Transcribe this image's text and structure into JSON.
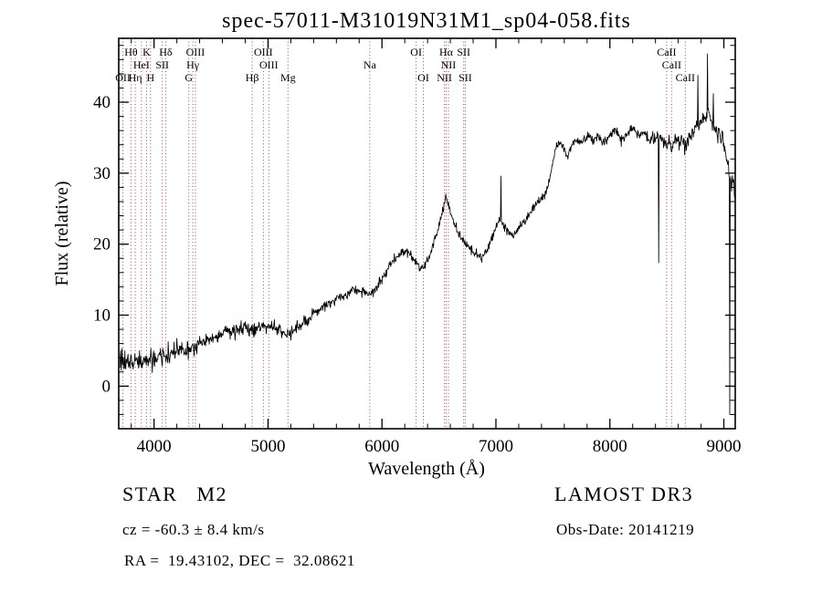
{
  "footer": {
    "left": {
      "class_line": "STAR   M2",
      "cz_line": "cz = -60.3 ± 8.4 km/s",
      "coord_line": "RA =  19.43102, DEC =  32.08621"
    },
    "right": {
      "survey_line": "LAMOST DR3",
      "obsdate_line": "Obs-Date: 20141219"
    }
  },
  "chart_data": {
    "type": "line",
    "title": "spec-57011-M31019N31M1_sp04-058.fits",
    "xlabel": "Wavelength (Å)",
    "ylabel": "Flux (relative)",
    "xlim": [
      3690,
      9100
    ],
    "ylim": [
      -6,
      49
    ],
    "xticks": [
      4000,
      5000,
      6000,
      7000,
      8000,
      9000
    ],
    "yticks": [
      0,
      10,
      20,
      30,
      40
    ],
    "x_minor_step": 200,
    "y_minor_step": 2,
    "line_color": "#000000",
    "marker_color": "#a8473a",
    "label_color": "#1c1c1c",
    "seed": 58,
    "spectral_lines": [
      {
        "label": "OII",
        "wavelength": 3727,
        "row": 3
      },
      {
        "label": "Hθ",
        "wavelength": 3798,
        "row": 1
      },
      {
        "label": "Hη",
        "wavelength": 3835,
        "row": 3
      },
      {
        "label": "HeI",
        "wavelength": 3889,
        "row": 2
      },
      {
        "label": "K",
        "wavelength": 3934,
        "row": 1
      },
      {
        "label": "H",
        "wavelength": 3969,
        "row": 3
      },
      {
        "label": "SII",
        "wavelength": 4072,
        "row": 2
      },
      {
        "label": "Hδ",
        "wavelength": 4102,
        "row": 1
      },
      {
        "label": "G",
        "wavelength": 4305,
        "row": 3
      },
      {
        "label": "Hγ",
        "wavelength": 4340,
        "row": 2
      },
      {
        "label": "OIII",
        "wavelength": 4363,
        "row": 1
      },
      {
        "label": "Hβ",
        "wavelength": 4861,
        "row": 3
      },
      {
        "label": "OIII",
        "wavelength": 4959,
        "row": 1
      },
      {
        "label": "OIII",
        "wavelength": 5007,
        "row": 2
      },
      {
        "label": "Mg",
        "wavelength": 5175,
        "row": 3
      },
      {
        "label": "Na",
        "wavelength": 5893,
        "row": 2
      },
      {
        "label": "OI",
        "wavelength": 6300,
        "row": 1
      },
      {
        "label": "OI",
        "wavelength": 6363,
        "row": 3
      },
      {
        "label": "NII",
        "wavelength": 6548,
        "row": 3
      },
      {
        "label": "Hα",
        "wavelength": 6563,
        "row": 1
      },
      {
        "label": "NII",
        "wavelength": 6583,
        "row": 2
      },
      {
        "label": "SII",
        "wavelength": 6717,
        "row": 1
      },
      {
        "label": "SII",
        "wavelength": 6731,
        "row": 3
      },
      {
        "label": "CaII",
        "wavelength": 8498,
        "row": 1
      },
      {
        "label": "CaII",
        "wavelength": 8542,
        "row": 2
      },
      {
        "label": "CaII",
        "wavelength": 8662,
        "row": 3
      }
    ],
    "series": [
      {
        "name": "spectrum",
        "anchors": [
          [
            3700,
            2.8
          ],
          [
            3715,
            4.2
          ],
          [
            3730,
            3.0
          ],
          [
            3750,
            3.8
          ],
          [
            3775,
            3.2
          ],
          [
            3800,
            3.4
          ],
          [
            3830,
            3.1
          ],
          [
            3860,
            3.6
          ],
          [
            3890,
            3.2
          ],
          [
            3920,
            3.4
          ],
          [
            3950,
            3.6
          ],
          [
            3980,
            3.9
          ],
          [
            4010,
            3.8
          ],
          [
            4040,
            4.3
          ],
          [
            4070,
            4.1
          ],
          [
            4100,
            4.2
          ],
          [
            4130,
            4.5
          ],
          [
            4160,
            4.7
          ],
          [
            4200,
            4.9
          ],
          [
            4250,
            5.1
          ],
          [
            4300,
            5.0
          ],
          [
            4340,
            5.5
          ],
          [
            4380,
            5.9
          ],
          [
            4430,
            6.3
          ],
          [
            4480,
            6.6
          ],
          [
            4530,
            6.9
          ],
          [
            4580,
            7.1
          ],
          [
            4640,
            7.5
          ],
          [
            4700,
            7.8
          ],
          [
            4760,
            8.1
          ],
          [
            4820,
            8.3
          ],
          [
            4861,
            8.0
          ],
          [
            4900,
            8.4
          ],
          [
            4950,
            8.7
          ],
          [
            5000,
            8.5
          ],
          [
            5050,
            8.2
          ],
          [
            5100,
            7.8
          ],
          [
            5140,
            7.5
          ],
          [
            5180,
            7.2
          ],
          [
            5220,
            7.6
          ],
          [
            5260,
            8.2
          ],
          [
            5300,
            8.8
          ],
          [
            5350,
            9.3
          ],
          [
            5400,
            10.1
          ],
          [
            5450,
            10.7
          ],
          [
            5500,
            11.2
          ],
          [
            5550,
            11.8
          ],
          [
            5600,
            12.3
          ],
          [
            5650,
            12.7
          ],
          [
            5700,
            13.1
          ],
          [
            5750,
            13.4
          ],
          [
            5800,
            13.5
          ],
          [
            5850,
            13.3
          ],
          [
            5890,
            12.6
          ],
          [
            5920,
            13.2
          ],
          [
            5960,
            14.1
          ],
          [
            6000,
            15.2
          ],
          [
            6050,
            16.5
          ],
          [
            6100,
            17.7
          ],
          [
            6150,
            18.6
          ],
          [
            6200,
            19.0
          ],
          [
            6250,
            18.3
          ],
          [
            6300,
            17.3
          ],
          [
            6340,
            16.6
          ],
          [
            6380,
            17.2
          ],
          [
            6420,
            18.6
          ],
          [
            6460,
            20.4
          ],
          [
            6500,
            22.6
          ],
          [
            6530,
            24.2
          ],
          [
            6555,
            26.3
          ],
          [
            6565,
            26.8
          ],
          [
            6580,
            25.6
          ],
          [
            6610,
            24.0
          ],
          [
            6640,
            22.6
          ],
          [
            6670,
            21.6
          ],
          [
            6700,
            20.8
          ],
          [
            6730,
            20.0
          ],
          [
            6760,
            19.4
          ],
          [
            6800,
            18.9
          ],
          [
            6840,
            18.5
          ],
          [
            6875,
            17.9
          ],
          [
            6910,
            18.8
          ],
          [
            6950,
            20.4
          ],
          [
            7000,
            22.2
          ],
          [
            7030,
            23.4
          ],
          [
            7060,
            23.0
          ],
          [
            7100,
            21.8
          ],
          [
            7150,
            21.2
          ],
          [
            7200,
            22.0
          ],
          [
            7250,
            23.3
          ],
          [
            7300,
            24.4
          ],
          [
            7350,
            25.7
          ],
          [
            7400,
            26.3
          ],
          [
            7440,
            27.2
          ],
          [
            7470,
            29.0
          ],
          [
            7500,
            31.8
          ],
          [
            7530,
            33.6
          ],
          [
            7560,
            34.6
          ],
          [
            7600,
            33.2
          ],
          [
            7630,
            32.4
          ],
          [
            7660,
            33.8
          ],
          [
            7700,
            34.8
          ],
          [
            7750,
            34.2
          ],
          [
            7800,
            35.3
          ],
          [
            7850,
            34.6
          ],
          [
            7900,
            35.1
          ],
          [
            7950,
            34.3
          ],
          [
            8000,
            35.4
          ],
          [
            8050,
            36.0
          ],
          [
            8100,
            34.8
          ],
          [
            8150,
            35.6
          ],
          [
            8200,
            36.3
          ],
          [
            8250,
            35.2
          ],
          [
            8300,
            35.6
          ],
          [
            8350,
            34.8
          ],
          [
            8400,
            35.2
          ],
          [
            8440,
            35.0
          ],
          [
            8480,
            34.2
          ],
          [
            8500,
            33.4
          ],
          [
            8520,
            34.6
          ],
          [
            8542,
            33.2
          ],
          [
            8570,
            34.8
          ],
          [
            8600,
            34.4
          ],
          [
            8630,
            35.0
          ],
          [
            8662,
            33.4
          ],
          [
            8690,
            34.8
          ],
          [
            8720,
            35.4
          ],
          [
            8750,
            36.2
          ],
          [
            8790,
            37.0
          ],
          [
            8830,
            37.8
          ],
          [
            8870,
            38.2
          ],
          [
            8900,
            37.0
          ],
          [
            8930,
            36.0
          ],
          [
            8960,
            35.6
          ],
          [
            9000,
            34.6
          ],
          [
            9030,
            31.5
          ],
          [
            9060,
            29.0
          ],
          [
            9100,
            27.5
          ]
        ]
      }
    ],
    "noise_profile": [
      [
        3700,
        1.7
      ],
      [
        4000,
        1.2
      ],
      [
        4400,
        0.95
      ],
      [
        4800,
        0.8
      ],
      [
        5300,
        0.7
      ],
      [
        6000,
        0.65
      ],
      [
        6700,
        0.6
      ],
      [
        7200,
        0.6
      ],
      [
        7700,
        0.6
      ],
      [
        8200,
        0.65
      ],
      [
        8600,
        0.8
      ],
      [
        8900,
        1.0
      ],
      [
        9100,
        1.1
      ]
    ],
    "spikes": [
      [
        7045,
        29.6
      ],
      [
        8428,
        17.4
      ],
      [
        8772,
        43.8
      ],
      [
        8856,
        46.8
      ],
      [
        8908,
        41.2
      ],
      [
        9052,
        -4.0
      ]
    ]
  }
}
